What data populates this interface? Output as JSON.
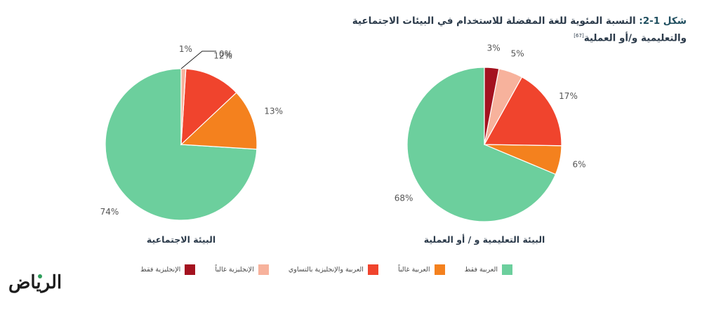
{
  "title": {
    "prefix": "شكل 1-2:",
    "line1": "النسبة المئوية للغة المفضلة للاستخدام في البيئات الاجتماعية",
    "line2": "والتعليمية و/أو العملية",
    "ref": "[67]"
  },
  "colors": {
    "arabic_only": "#6ccf9d",
    "mostly_arabic": "#f4811e",
    "arabic_english_equal": "#f0442d",
    "mostly_english": "#f7b29c",
    "english_only": "#a4121f"
  },
  "legend": [
    {
      "label": "العربية فقط",
      "color": "#6ccf9d"
    },
    {
      "label": "العربية غالباً",
      "color": "#f4811e"
    },
    {
      "label": "العربية والإنجليزية بالتساوي",
      "color": "#f0442d"
    },
    {
      "label": "الإنجليزية غالباً",
      "color": "#f7b29c"
    },
    {
      "label": "الإنجليزية فقط",
      "color": "#a4121f"
    }
  ],
  "logo": "الرياض",
  "chart_data": [
    {
      "type": "pie",
      "title": "البيئة الاجتماعية",
      "categories": [
        "العربية فقط",
        "العربية غالباً",
        "العربية والإنجليزية بالتساوي",
        "الإنجليزية غالباً",
        "الإنجليزية فقط"
      ],
      "values": [
        74,
        13,
        12,
        1,
        0
      ],
      "labels": [
        "74%",
        "13%",
        "12%",
        "1%",
        "0%"
      ]
    },
    {
      "type": "pie",
      "title": "البيئة التعليمية و / أو العملية",
      "categories": [
        "العربية فقط",
        "العربية غالباً",
        "العربية والإنجليزية بالتساوي",
        "الإنجليزية غالباً",
        "الإنجليزية فقط"
      ],
      "values": [
        68,
        6,
        17,
        5,
        3
      ],
      "labels": [
        "68%",
        "6%",
        "17%",
        "5%",
        "3%"
      ]
    }
  ]
}
